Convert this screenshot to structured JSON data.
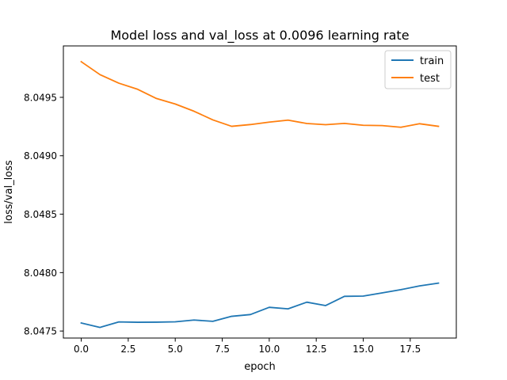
{
  "chart_data": {
    "type": "line",
    "title": "Model loss and val_loss at 0.0096 learning rate",
    "xlabel": "epoch",
    "ylabel": "loss/val_loss",
    "xlim": [
      -0.95,
      19.95
    ],
    "ylim": [
      8.04744,
      8.04994
    ],
    "xticks": [
      0.0,
      2.5,
      5.0,
      7.5,
      10.0,
      12.5,
      15.0,
      17.5
    ],
    "xtick_labels": [
      "0.0",
      "2.5",
      "5.0",
      "7.5",
      "10.0",
      "12.5",
      "15.0",
      "17.5"
    ],
    "yticks": [
      8.0475,
      8.048,
      8.0485,
      8.049,
      8.0495
    ],
    "ytick_labels": [
      "8.0475",
      "8.0480",
      "8.0485",
      "8.0490",
      "8.0495"
    ],
    "grid": false,
    "legend_position": "upper right",
    "x": [
      0,
      1,
      2,
      3,
      4,
      5,
      6,
      7,
      8,
      9,
      10,
      11,
      12,
      13,
      14,
      15,
      16,
      17,
      18,
      19
    ],
    "series": [
      {
        "name": "train",
        "color": "#1f77b4",
        "values": [
          8.047569,
          8.047531,
          8.047578,
          8.047575,
          8.047576,
          8.047579,
          8.047594,
          8.047583,
          8.047626,
          8.047641,
          8.047703,
          8.04769,
          8.047747,
          8.047718,
          8.047797,
          8.047799,
          8.047826,
          8.047854,
          8.047886,
          8.04791
        ]
      },
      {
        "name": "test",
        "color": "#ff7f0e",
        "values": [
          8.049805,
          8.049694,
          8.049621,
          8.049569,
          8.04949,
          8.049443,
          8.049381,
          8.049307,
          8.049252,
          8.049267,
          8.049288,
          8.049305,
          8.049276,
          8.049266,
          8.049277,
          8.049261,
          8.049258,
          8.049244,
          8.049274,
          8.049252
        ]
      }
    ]
  }
}
